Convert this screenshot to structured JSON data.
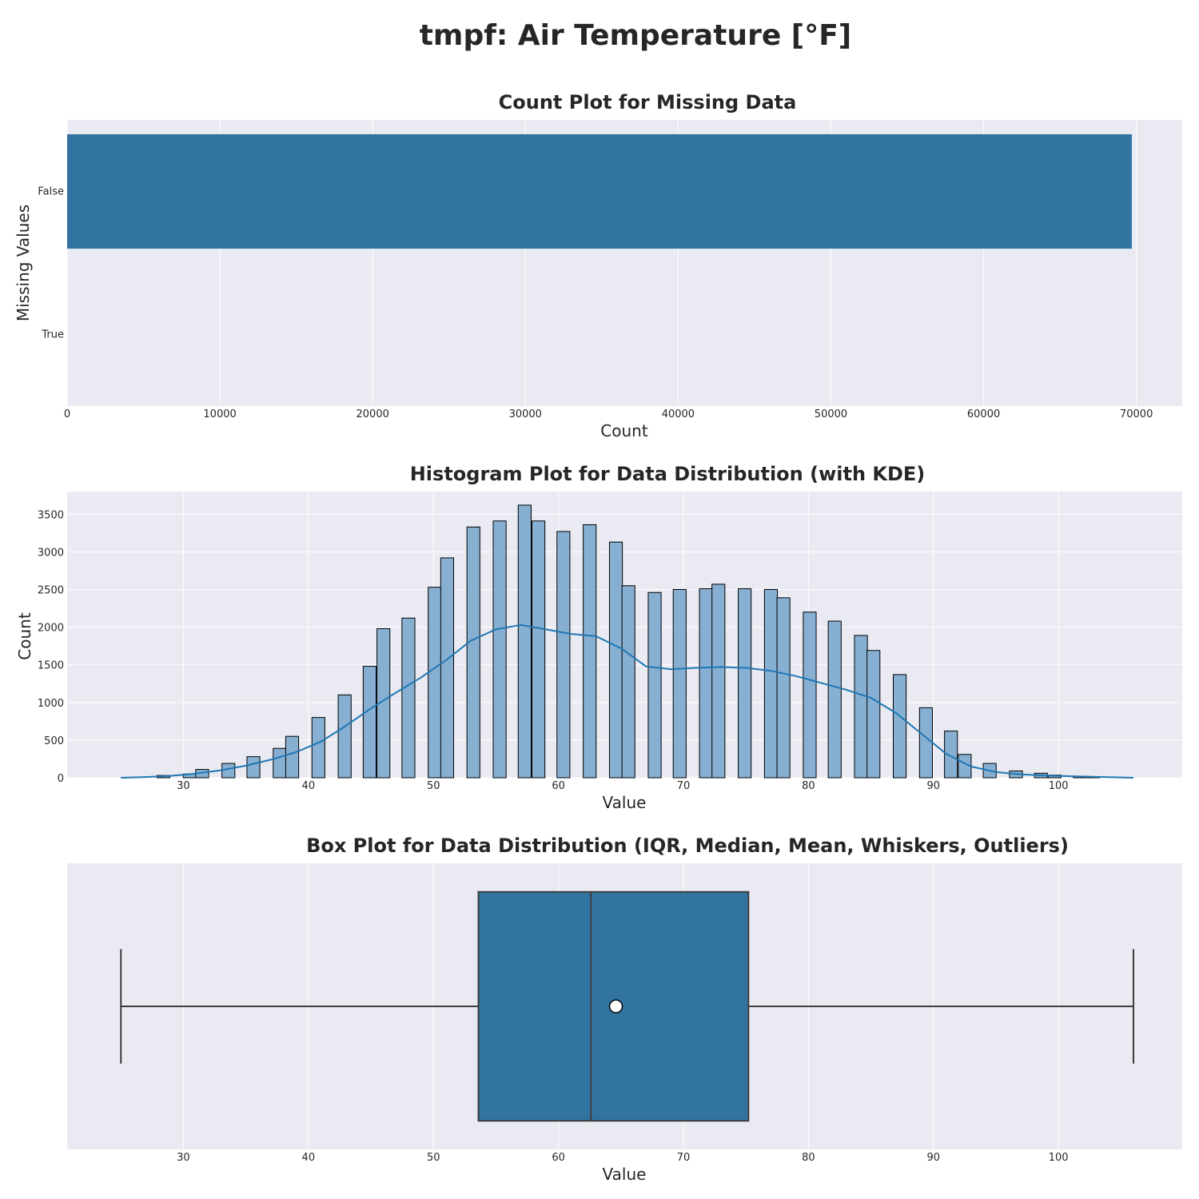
{
  "suptitle": "tmpf: Air Temperature [°F]",
  "colors": {
    "panel_bg": "#eaeaf2",
    "grid": "#ffffff",
    "bar": "#3274a1",
    "hist_fill": "#86afd2",
    "kde": "#1f77b4",
    "edge": "#000000",
    "box_line": "#3d3d3d"
  },
  "chart_data": [
    {
      "type": "bar",
      "orientation": "horizontal",
      "title": "Count Plot for Missing Data",
      "xlabel": "Count",
      "ylabel": "Missing Values",
      "categories": [
        "False",
        "True"
      ],
      "values": [
        69700,
        0
      ],
      "xlim": [
        0,
        73000
      ],
      "xticks": [
        0,
        10000,
        20000,
        30000,
        40000,
        50000,
        60000,
        70000
      ],
      "xtick_labels": [
        "0",
        "10000",
        "20000",
        "30000",
        "40000",
        "50000",
        "60000",
        "70000"
      ],
      "grid": true
    },
    {
      "type": "bar",
      "subtype": "histogram with KDE",
      "title": "Histogram Plot for Data Distribution (with KDE)",
      "xlabel": "Value",
      "ylabel": "Count",
      "bin_width": 1.0337,
      "bins": [
        {
          "x": 28.4,
          "count": 30
        },
        {
          "x": 30.5,
          "count": 50
        },
        {
          "x": 31.5,
          "count": 110
        },
        {
          "x": 33.6,
          "count": 190
        },
        {
          "x": 35.6,
          "count": 280
        },
        {
          "x": 37.7,
          "count": 390
        },
        {
          "x": 38.7,
          "count": 550
        },
        {
          "x": 40.8,
          "count": 800
        },
        {
          "x": 42.9,
          "count": 1100
        },
        {
          "x": 44.9,
          "count": 1480
        },
        {
          "x": 46.0,
          "count": 1980
        },
        {
          "x": 48.0,
          "count": 2120
        },
        {
          "x": 50.1,
          "count": 2530
        },
        {
          "x": 51.1,
          "count": 2920
        },
        {
          "x": 53.2,
          "count": 3330
        },
        {
          "x": 55.3,
          "count": 3410
        },
        {
          "x": 57.3,
          "count": 3620
        },
        {
          "x": 58.4,
          "count": 3410
        },
        {
          "x": 60.4,
          "count": 3270
        },
        {
          "x": 62.5,
          "count": 3360
        },
        {
          "x": 64.6,
          "count": 3130
        },
        {
          "x": 65.6,
          "count": 2550
        },
        {
          "x": 67.7,
          "count": 2460
        },
        {
          "x": 69.7,
          "count": 2500
        },
        {
          "x": 71.8,
          "count": 2510
        },
        {
          "x": 72.8,
          "count": 2570
        },
        {
          "x": 74.9,
          "count": 2510
        },
        {
          "x": 77.0,
          "count": 2500
        },
        {
          "x": 78.0,
          "count": 2390
        },
        {
          "x": 80.1,
          "count": 2200
        },
        {
          "x": 82.1,
          "count": 2080
        },
        {
          "x": 84.2,
          "count": 1890
        },
        {
          "x": 85.2,
          "count": 1690
        },
        {
          "x": 87.3,
          "count": 1370
        },
        {
          "x": 89.4,
          "count": 930
        },
        {
          "x": 91.4,
          "count": 620
        },
        {
          "x": 92.5,
          "count": 310
        },
        {
          "x": 94.5,
          "count": 190
        },
        {
          "x": 96.6,
          "count": 90
        },
        {
          "x": 98.6,
          "count": 60
        },
        {
          "x": 99.7,
          "count": 35
        },
        {
          "x": 101.7,
          "count": 20
        },
        {
          "x": 102.8,
          "count": 15
        }
      ],
      "kde": {
        "x": [
          25,
          27,
          29,
          31,
          33,
          35,
          37,
          39,
          41,
          43,
          45,
          47,
          49,
          51,
          53,
          55,
          57,
          59,
          61,
          63,
          65,
          67,
          69,
          71,
          73,
          75,
          77,
          79,
          81,
          83,
          85,
          87,
          89,
          91,
          93,
          95,
          97,
          99,
          101,
          103,
          106
        ],
        "y": [
          0,
          10,
          25,
          55,
          100,
          160,
          240,
          340,
          480,
          690,
          920,
          1130,
          1330,
          1560,
          1820,
          1970,
          2030,
          1970,
          1910,
          1880,
          1720,
          1480,
          1440,
          1460,
          1470,
          1460,
          1420,
          1350,
          1260,
          1170,
          1060,
          860,
          590,
          320,
          150,
          75,
          45,
          30,
          20,
          12,
          0
        ]
      },
      "xlim": [
        20.7,
        109.9
      ],
      "ylim": [
        0,
        3800
      ],
      "xticks": [
        30,
        40,
        50,
        60,
        70,
        80,
        90,
        100
      ],
      "yticks": [
        0,
        500,
        1000,
        1500,
        2000,
        2500,
        3000,
        3500
      ],
      "grid": true
    },
    {
      "type": "box",
      "title": "Box Plot for Data Distribution (IQR, Median, Mean, Whiskers, Outliers)",
      "xlabel": "Value",
      "whisker_low": 25.0,
      "q1": 53.6,
      "median": 62.6,
      "q3": 75.2,
      "whisker_high": 106.0,
      "mean": 64.6,
      "outliers": [],
      "xlim": [
        20.7,
        109.9
      ],
      "xticks": [
        30,
        40,
        50,
        60,
        70,
        80,
        90,
        100
      ],
      "grid": true
    }
  ]
}
